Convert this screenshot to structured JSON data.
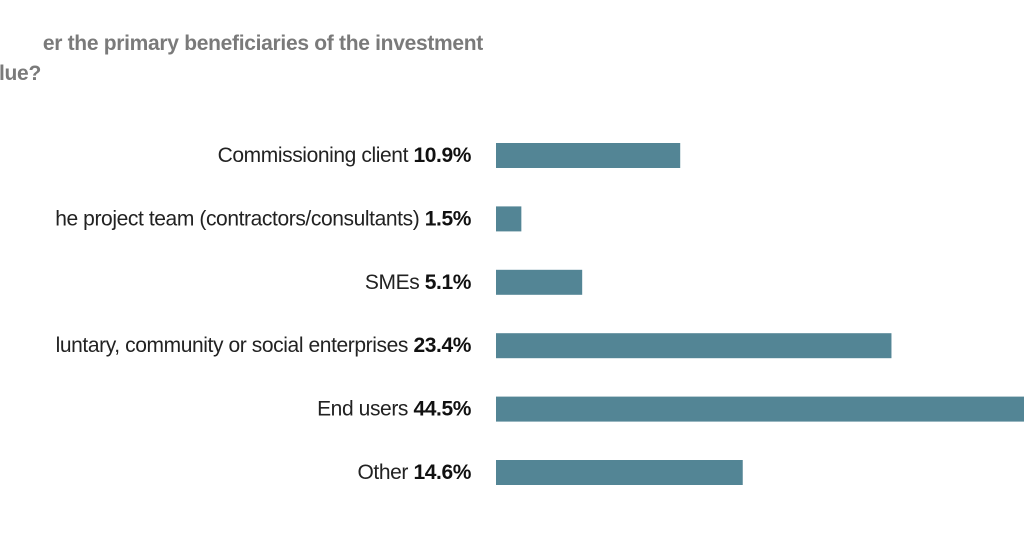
{
  "chart_data": {
    "type": "bar",
    "orientation": "horizontal",
    "title_lines": [
      "er the primary beneficiaries of the investment",
      "lue?"
    ],
    "categories": [
      "Commissioning client",
      "he project team (contractors/consultants)",
      "SMEs",
      "luntary, community or social enterprises",
      "End users",
      "Other"
    ],
    "values": [
      10.9,
      1.5,
      5.1,
      23.4,
      44.5,
      14.6
    ],
    "value_labels": [
      "10.9%",
      "1.5%",
      "5.1%",
      "23.4%",
      "44.5%",
      "14.6%"
    ],
    "unit": "%",
    "grid": false,
    "legend": "none",
    "bar_color": "#538595"
  }
}
